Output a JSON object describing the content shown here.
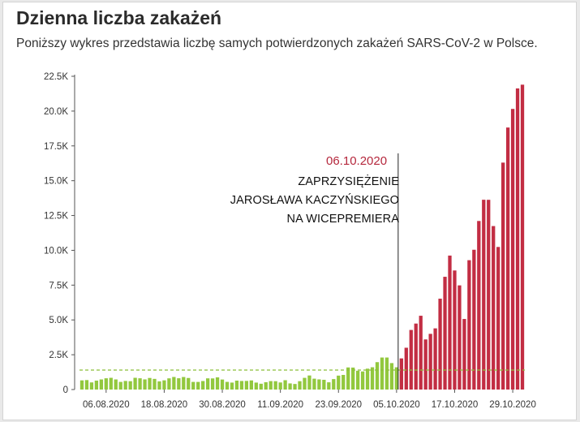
{
  "header": {
    "title": "Dzienna liczba zakażeń",
    "subtitle": "Poniższy wykres przedstawia liczbę samych potwierdzonych zakażeń SARS-CoV-2 w Polsce."
  },
  "annotation": {
    "date": "06.10.2020",
    "lines": [
      "ZAPRZYSIĘŻENIE",
      "JAROSŁAWA KACZYŃSKIEGO",
      "NA WICEPREMIERA"
    ]
  },
  "colors": {
    "before": "#92c83e",
    "after": "#c22d43",
    "annotation_date": "#b5283d",
    "reference_line": "#8cbf3a"
  },
  "chart_data": {
    "type": "bar",
    "title": "Dzienna liczba zakażeń",
    "ylim": [
      0,
      22500
    ],
    "yticks": [
      0,
      2500,
      5000,
      7500,
      10000,
      12500,
      15000,
      17500,
      20000,
      22500
    ],
    "ytick_labels": [
      "0",
      "2.5K",
      "5.0K",
      "7.5K",
      "10.0K",
      "12.5K",
      "15.0K",
      "17.5K",
      "20.0K",
      "22.5K"
    ],
    "xtick_labels": [
      "06.08.2020",
      "18.08.2020",
      "30.08.2020",
      "11.09.2020",
      "23.09.2020",
      "05.10.2020",
      "17.10.2020",
      "29.10.2020"
    ],
    "marker_date": "06.10.2020",
    "reference_value": 1400,
    "dates": [
      "2020-08-01",
      "2020-08-02",
      "2020-08-03",
      "2020-08-04",
      "2020-08-05",
      "2020-08-06",
      "2020-08-07",
      "2020-08-08",
      "2020-08-09",
      "2020-08-10",
      "2020-08-11",
      "2020-08-12",
      "2020-08-13",
      "2020-08-14",
      "2020-08-15",
      "2020-08-16",
      "2020-08-17",
      "2020-08-18",
      "2020-08-19",
      "2020-08-20",
      "2020-08-21",
      "2020-08-22",
      "2020-08-23",
      "2020-08-24",
      "2020-08-25",
      "2020-08-26",
      "2020-08-27",
      "2020-08-28",
      "2020-08-29",
      "2020-08-30",
      "2020-08-31",
      "2020-09-01",
      "2020-09-02",
      "2020-09-03",
      "2020-09-04",
      "2020-09-05",
      "2020-09-06",
      "2020-09-07",
      "2020-09-08",
      "2020-09-09",
      "2020-09-10",
      "2020-09-11",
      "2020-09-12",
      "2020-09-13",
      "2020-09-14",
      "2020-09-15",
      "2020-09-16",
      "2020-09-17",
      "2020-09-18",
      "2020-09-19",
      "2020-09-20",
      "2020-09-21",
      "2020-09-22",
      "2020-09-23",
      "2020-09-24",
      "2020-09-25",
      "2020-09-26",
      "2020-09-27",
      "2020-09-28",
      "2020-09-29",
      "2020-09-30",
      "2020-10-01",
      "2020-10-02",
      "2020-10-03",
      "2020-10-04",
      "2020-10-05",
      "2020-10-06",
      "2020-10-07",
      "2020-10-08",
      "2020-10-09",
      "2020-10-10",
      "2020-10-11",
      "2020-10-12",
      "2020-10-13",
      "2020-10-14",
      "2020-10-15",
      "2020-10-16",
      "2020-10-17",
      "2020-10-18",
      "2020-10-19",
      "2020-10-20",
      "2020-10-21",
      "2020-10-22",
      "2020-10-23",
      "2020-10-24",
      "2020-10-25",
      "2020-10-26",
      "2020-10-27",
      "2020-10-28",
      "2020-10-29",
      "2020-10-30",
      "2020-10-31"
    ],
    "series": [
      {
        "values": [
          658,
          680,
          512,
          640,
          726,
          809,
          843,
          726,
          548,
          617,
          599,
          843,
          809,
          729,
          832,
          766,
          587,
          661,
          804,
          903,
          811,
          900,
          830,
          548,
          547,
          611,
          804,
          800,
          875,
          720,
          550,
          500,
          640,
          615,
          620,
          655,
          500,
          417,
          525,
          606,
          600,
          508,
          670,
          440,
          400,
          600,
          840,
          1010,
          780,
          730,
          700,
          520,
          750,
          1000,
          1050,
          1587,
          1578,
          1350,
          1300,
          1500,
          1600,
          1967,
          2300,
          2300,
          1900,
          1600,
          2236,
          3003,
          4280,
          4739,
          5300,
          3600,
          4000,
          4394,
          6526,
          8099,
          9622,
          8552,
          7482,
          5068,
          9291,
          10040,
          12107,
          13632,
          13628,
          11742,
          10241,
          16300,
          18820,
          20156,
          21629,
          21897
        ]
      }
    ]
  }
}
